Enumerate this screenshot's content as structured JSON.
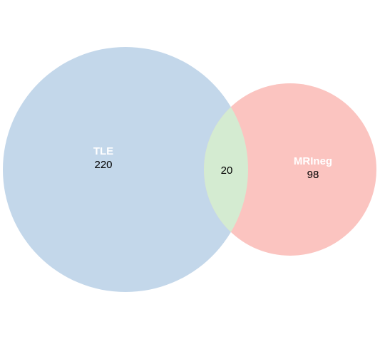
{
  "diagram": {
    "type": "venn",
    "sets": [
      {
        "id": "tle",
        "label": "TLE",
        "count": "220",
        "color": "#c3d7ea"
      },
      {
        "id": "mrineg",
        "label": "MRIneg",
        "count": "98",
        "color": "#fbc4c0"
      }
    ],
    "intersection": {
      "count": "20",
      "color": "#d4ebd1"
    }
  },
  "background": "#ffffff"
}
